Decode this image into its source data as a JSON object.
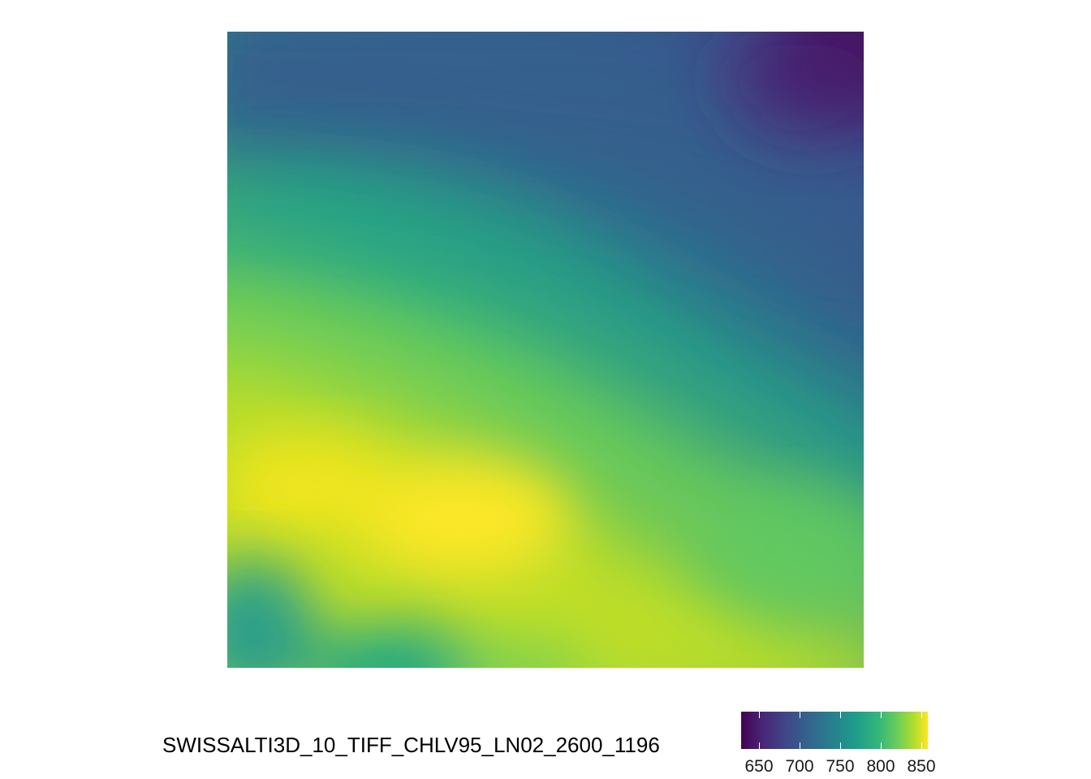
{
  "map": {
    "type": "raster",
    "colormap": "viridis",
    "legend": {
      "title": "SWISSALTI3D_10_TIFF_CHLV95_LN02_2600_1196",
      "ticks": [
        "650",
        "700",
        "750",
        "800",
        "850"
      ],
      "range": [
        628,
        858
      ]
    },
    "colors": {
      "low": "#440154",
      "mid": "#21918c",
      "high": "#fde725"
    }
  }
}
